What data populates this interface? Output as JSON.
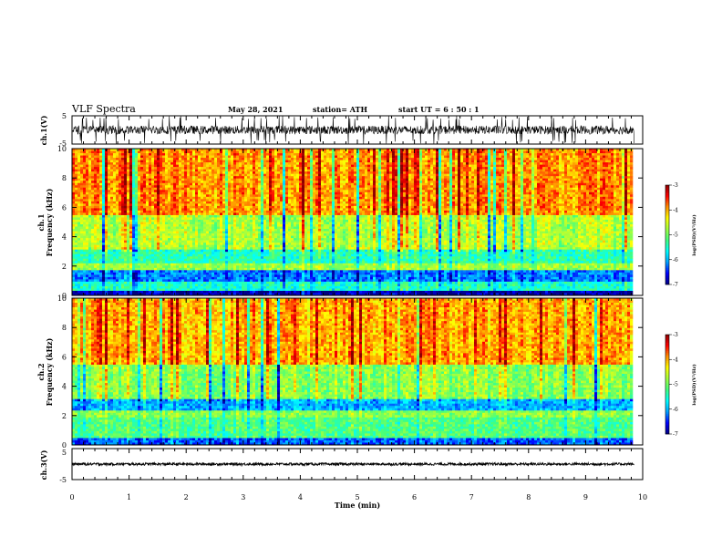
{
  "header": {
    "title": "VLF Spectra",
    "date": "May 28, 2021",
    "station": "station= ATH",
    "start": "start  UT =  6 : 50 : 1"
  },
  "colors": {
    "spectrogram_scale": [
      "#00007f",
      "#0000ff",
      "#00a0ff",
      "#00ffff",
      "#40ff80",
      "#a0ff40",
      "#ffff00",
      "#ff9000",
      "#ff0000",
      "#8a0000"
    ],
    "trace": "#000000"
  },
  "chart_data": [
    {
      "type": "line",
      "panel": "ch1-waveform",
      "ylabel": "ch.1(V)",
      "ylim": [
        -5,
        5
      ],
      "yticks": [
        "5",
        "-5"
      ],
      "series": [
        {
          "values_summary": {
            "mean_V": 0.0,
            "typical_amplitude_V": 1.5,
            "max_spike_V": 5
          }
        }
      ]
    },
    {
      "type": "heatmap",
      "panel": "ch1-spectrogram",
      "ylabel": "ch.1\nFrequency (kHz)",
      "ylim": [
        0,
        10
      ],
      "yticks": [
        "0",
        "2",
        "4",
        "6",
        "8",
        "10"
      ],
      "colorbar": {
        "label": "log(PSD)(V²/Hz)",
        "range": [
          -7,
          -3
        ],
        "ticks": [
          "-3",
          "-4",
          "-5",
          "-6",
          "-7"
        ]
      },
      "profile": [
        {
          "freq_range_kHz": [
            0,
            0.3
          ],
          "log_psd": -6.8
        },
        {
          "freq_range_kHz": [
            0.3,
            0.9
          ],
          "log_psd": -5.5
        },
        {
          "freq_range_kHz": [
            0.9,
            1.7
          ],
          "log_psd": -6.2
        },
        {
          "freq_range_kHz": [
            1.7,
            2.2
          ],
          "log_psd": -4.8
        },
        {
          "freq_range_kHz": [
            2.2,
            3.2
          ],
          "log_psd": -5.4
        },
        {
          "freq_range_kHz": [
            3.2,
            5.5
          ],
          "log_psd": -4.7
        },
        {
          "freq_range_kHz": [
            5.5,
            10
          ],
          "log_psd": -3.9
        }
      ]
    },
    {
      "type": "heatmap",
      "panel": "ch2-spectrogram",
      "ylabel": "ch.2\nFrequency (kHz)",
      "ylim": [
        0,
        10
      ],
      "yticks": [
        "0",
        "2",
        "4",
        "6",
        "8",
        "10"
      ],
      "colorbar": {
        "label": "log(PSD)(V²/Hz)",
        "range": [
          -7,
          -3
        ],
        "ticks": [
          "-3",
          "-4",
          "-5",
          "-6",
          "-7"
        ]
      },
      "profile": [
        {
          "freq_range_kHz": [
            0,
            0.5
          ],
          "log_psd": -6.3
        },
        {
          "freq_range_kHz": [
            0.5,
            1.9
          ],
          "log_psd": -5.2
        },
        {
          "freq_range_kHz": [
            1.9,
            2.4
          ],
          "log_psd": -4.9
        },
        {
          "freq_range_kHz": [
            2.4,
            3.2
          ],
          "log_psd": -6.0
        },
        {
          "freq_range_kHz": [
            3.2,
            5.5
          ],
          "log_psd": -4.9
        },
        {
          "freq_range_kHz": [
            5.5,
            10
          ],
          "log_psd": -4.0
        }
      ]
    },
    {
      "type": "line",
      "panel": "ch3-waveform",
      "ylabel": "ch.3(V)",
      "ylim": [
        -5,
        5
      ],
      "yticks": [
        "5",
        "-5"
      ],
      "series": [
        {
          "values_summary": {
            "mean_V": 0.0,
            "typical_amplitude_V": 0.4
          }
        }
      ]
    }
  ],
  "x_axis": {
    "label": "Time (min)",
    "range": [
      0,
      10
    ],
    "data_end_min": 9.85,
    "ticks": [
      "0",
      "1",
      "2",
      "3",
      "4",
      "5",
      "6",
      "7",
      "8",
      "9",
      "10"
    ]
  }
}
